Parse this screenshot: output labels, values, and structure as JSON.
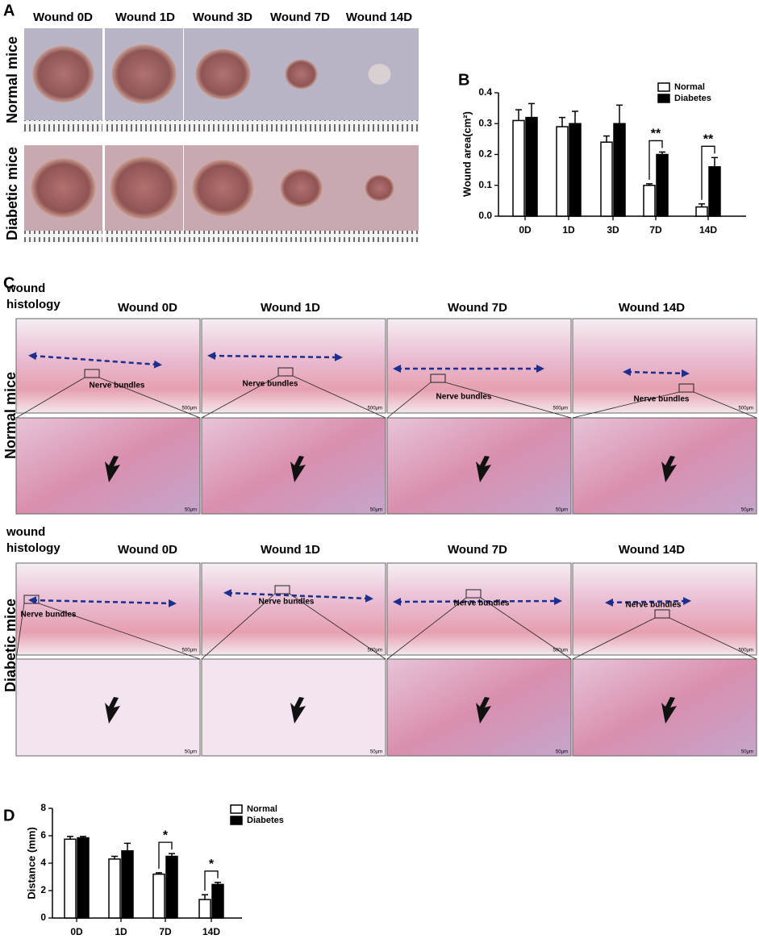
{
  "panel_a": {
    "letter": "A",
    "columns": [
      "Wound 0D",
      "Wound 1D",
      "Wound 3D",
      "Wound 7D",
      "Wound 14D"
    ],
    "rows": [
      "Normal mice",
      "Diabetic mice"
    ]
  },
  "panel_c": {
    "letter": "C",
    "heading_lines": [
      "wound",
      "histology"
    ],
    "columns": [
      "Wound 0D",
      "Wound 1D",
      "Wound 7D",
      "Wound 14D"
    ],
    "rows": [
      "Normal mice",
      "Diabetic mice"
    ],
    "annotation": "Nerve bundles",
    "scale_large": "500μm",
    "scale_small": "50μm"
  },
  "chart_data": [
    {
      "type": "bar",
      "letter": "B",
      "y_label": "Wound area(cm²)",
      "categories": [
        "0D",
        "1D",
        "3D",
        "7D",
        "14D"
      ],
      "series": [
        {
          "name": "Normal",
          "color": "#ffffff",
          "values": [
            0.31,
            0.29,
            0.24,
            0.1,
            0.03
          ],
          "errors": [
            0.035,
            0.03,
            0.02,
            0.005,
            0.01
          ]
        },
        {
          "name": "Diabetes",
          "color": "#000000",
          "values": [
            0.32,
            0.3,
            0.3,
            0.2,
            0.16
          ],
          "errors": [
            0.045,
            0.04,
            0.06,
            0.008,
            0.03
          ]
        }
      ],
      "significance": [
        null,
        null,
        null,
        "**",
        "**"
      ],
      "ylim": [
        0,
        0.4
      ],
      "yticks": [
        {
          "value": 0,
          "label": "0.0"
        },
        0.1,
        0.2,
        0.3,
        0.4
      ],
      "legend": "upper right"
    },
    {
      "type": "bar",
      "letter": "D",
      "y_label": "Distance (mm)",
      "categories": [
        "0D",
        "1D",
        "7D",
        "14D"
      ],
      "series": [
        {
          "name": "Normal",
          "color": "#ffffff",
          "values": [
            5.75,
            4.3,
            3.2,
            1.35
          ],
          "errors": [
            0.2,
            0.2,
            0.1,
            0.35
          ]
        },
        {
          "name": "Diabetes",
          "color": "#000000",
          "values": [
            5.85,
            4.9,
            4.5,
            2.45
          ],
          "errors": [
            0.1,
            0.55,
            0.2,
            0.15
          ]
        }
      ],
      "significance": [
        null,
        null,
        "*",
        "*"
      ],
      "ylim": [
        0,
        8
      ],
      "yticks": [
        0,
        2,
        4,
        6,
        8
      ],
      "legend": "upper right"
    }
  ]
}
